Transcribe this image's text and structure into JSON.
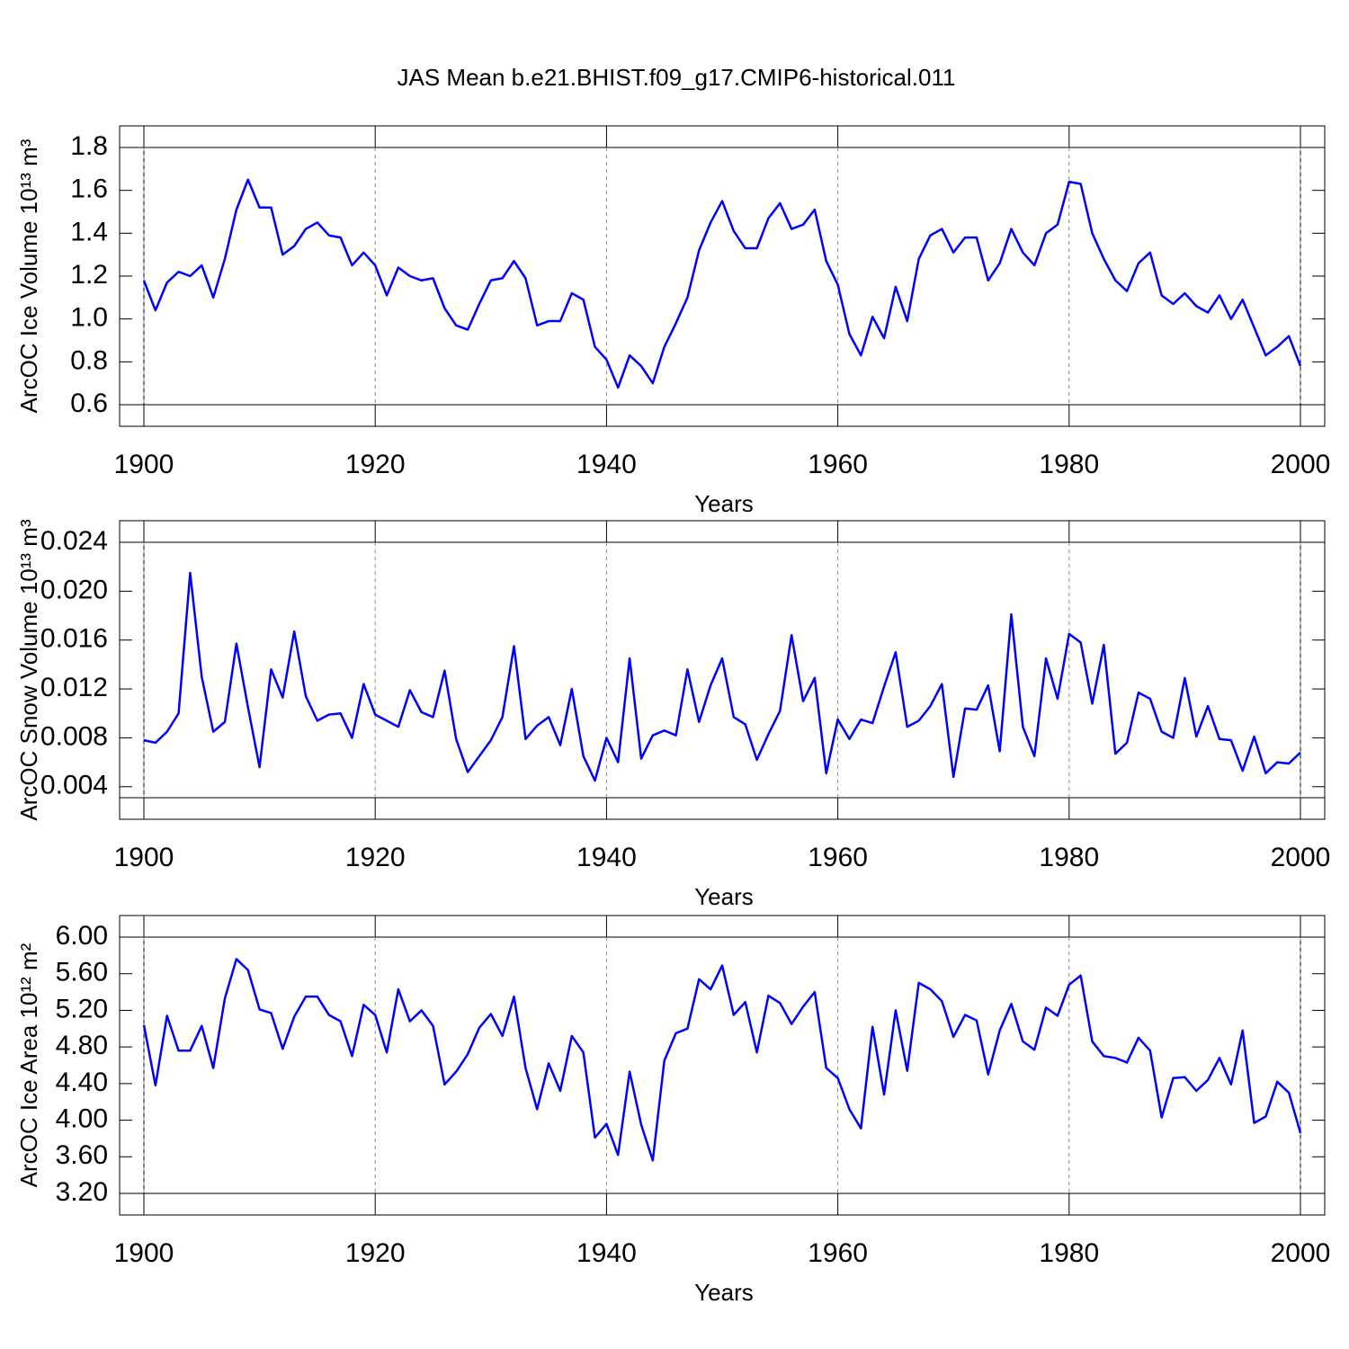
{
  "chart_data": [
    {
      "type": "line",
      "title": "JAS Mean b.e21.BHIST.f09_g17.CMIP6-historical.011",
      "xlabel": "Years",
      "ylabel": "ArcOC Ice Volume 10¹³ m³",
      "color": "#0000ff",
      "xgrid": true,
      "x": [
        1900,
        1901,
        1902,
        1903,
        1904,
        1905,
        1906,
        1907,
        1908,
        1909,
        1910,
        1911,
        1912,
        1913,
        1914,
        1915,
        1916,
        1917,
        1918,
        1919,
        1920,
        1921,
        1922,
        1923,
        1924,
        1925,
        1926,
        1927,
        1928,
        1929,
        1930,
        1931,
        1932,
        1933,
        1934,
        1935,
        1936,
        1937,
        1938,
        1939,
        1940,
        1941,
        1942,
        1943,
        1944,
        1945,
        1946,
        1947,
        1948,
        1949,
        1950,
        1951,
        1952,
        1953,
        1954,
        1955,
        1956,
        1957,
        1958,
        1959,
        1960,
        1961,
        1962,
        1963,
        1964,
        1965,
        1966,
        1967,
        1968,
        1969,
        1970,
        1971,
        1972,
        1973,
        1974,
        1975,
        1976,
        1977,
        1978,
        1979,
        1980,
        1981,
        1982,
        1983,
        1984,
        1985,
        1986,
        1987,
        1988,
        1989,
        1990,
        1991,
        1992,
        1993,
        1994,
        1995,
        1996,
        1997,
        1998,
        1999,
        2000
      ],
      "values": [
        1.18,
        1.04,
        1.17,
        1.22,
        1.2,
        1.25,
        1.1,
        1.28,
        1.51,
        1.65,
        1.52,
        1.52,
        1.3,
        1.34,
        1.42,
        1.45,
        1.39,
        1.38,
        1.25,
        1.31,
        1.25,
        1.11,
        1.24,
        1.2,
        1.18,
        1.19,
        1.05,
        0.97,
        0.95,
        1.07,
        1.18,
        1.19,
        1.27,
        1.19,
        0.97,
        0.99,
        0.99,
        1.12,
        1.09,
        0.87,
        0.81,
        0.68,
        0.83,
        0.78,
        0.7,
        0.87,
        0.98,
        1.1,
        1.32,
        1.45,
        1.55,
        1.41,
        1.33,
        1.33,
        1.47,
        1.54,
        1.42,
        1.44,
        1.51,
        1.27,
        1.16,
        0.93,
        0.83,
        1.01,
        0.91,
        1.15,
        0.99,
        1.28,
        1.39,
        1.42,
        1.31,
        1.38,
        1.38,
        1.18,
        1.26,
        1.42,
        1.31,
        1.25,
        1.4,
        1.44,
        1.64,
        1.63,
        1.4,
        1.28,
        1.18,
        1.13,
        1.26,
        1.31,
        1.11,
        1.07,
        1.12,
        1.06,
        1.03,
        1.11,
        1.0,
        1.09,
        0.96,
        0.83,
        0.87,
        0.92,
        0.78
      ],
      "xlim": [
        1900,
        2000
      ],
      "ylim": [
        0.6,
        1.8
      ],
      "xticks": [
        1900,
        1920,
        1940,
        1960,
        1980,
        2000
      ],
      "yticks": [
        0.6,
        0.8,
        {
          "value": 1,
          "label": "1.0"
        },
        1.2,
        1.4,
        1.6,
        1.8
      ]
    },
    {
      "type": "line",
      "xlabel": "Years",
      "ylabel": "ArcOC Snow Volume 10¹³ m³",
      "color": "#0000ff",
      "xgrid": true,
      "x": [
        1900,
        1901,
        1902,
        1903,
        1904,
        1905,
        1906,
        1907,
        1908,
        1909,
        1910,
        1911,
        1912,
        1913,
        1914,
        1915,
        1916,
        1917,
        1918,
        1919,
        1920,
        1921,
        1922,
        1923,
        1924,
        1925,
        1926,
        1927,
        1928,
        1929,
        1930,
        1931,
        1932,
        1933,
        1934,
        1935,
        1936,
        1937,
        1938,
        1939,
        1940,
        1941,
        1942,
        1943,
        1944,
        1945,
        1946,
        1947,
        1948,
        1949,
        1950,
        1951,
        1952,
        1953,
        1954,
        1955,
        1956,
        1957,
        1958,
        1959,
        1960,
        1961,
        1962,
        1963,
        1964,
        1965,
        1966,
        1967,
        1968,
        1969,
        1970,
        1971,
        1972,
        1973,
        1974,
        1975,
        1976,
        1977,
        1978,
        1979,
        1980,
        1981,
        1982,
        1983,
        1984,
        1985,
        1986,
        1987,
        1988,
        1989,
        1990,
        1991,
        1992,
        1993,
        1994,
        1995,
        1996,
        1997,
        1998,
        1999,
        2000
      ],
      "values": [
        0.0078,
        0.0076,
        0.0085,
        0.01,
        0.0215,
        0.013,
        0.0085,
        0.0093,
        0.0157,
        0.0105,
        0.0056,
        0.0136,
        0.0113,
        0.0167,
        0.0114,
        0.0094,
        0.0099,
        0.01,
        0.008,
        0.0124,
        0.0099,
        0.0094,
        0.0089,
        0.0119,
        0.0101,
        0.0097,
        0.0135,
        0.0079,
        0.0052,
        0.0065,
        0.0078,
        0.0097,
        0.0155,
        0.0079,
        0.009,
        0.0097,
        0.0074,
        0.012,
        0.0065,
        0.0045,
        0.008,
        0.006,
        0.0145,
        0.0063,
        0.0082,
        0.0086,
        0.0082,
        0.0136,
        0.0093,
        0.0123,
        0.0145,
        0.0097,
        0.0091,
        0.0062,
        0.0083,
        0.0102,
        0.0164,
        0.011,
        0.0129,
        0.0051,
        0.0095,
        0.0079,
        0.0095,
        0.0092,
        0.0122,
        0.015,
        0.0089,
        0.0094,
        0.0106,
        0.0124,
        0.0048,
        0.0104,
        0.0103,
        0.0123,
        0.0069,
        0.0181,
        0.0089,
        0.0065,
        0.0145,
        0.0112,
        0.0165,
        0.0158,
        0.0108,
        0.0156,
        0.0067,
        0.0076,
        0.0117,
        0.0112,
        0.0085,
        0.008,
        0.0129,
        0.0081,
        0.0106,
        0.0079,
        0.0078,
        0.0053,
        0.0081,
        0.0051,
        0.006,
        0.0059,
        0.0068
      ],
      "xlim": [
        1900,
        2000
      ],
      "ylim": [
        0.0031,
        0.024
      ],
      "xticks": [
        1900,
        1920,
        1940,
        1960,
        1980,
        2000
      ],
      "yticks": [
        0.004,
        0.008,
        0.012,
        0.016,
        {
          "value": 0.02,
          "label": "0.020"
        },
        0.024
      ]
    },
    {
      "type": "line",
      "xlabel": "Years",
      "ylabel": "ArcOC Ice Area 10¹² m²",
      "color": "#0000ff",
      "xgrid": true,
      "x": [
        1900,
        1901,
        1902,
        1903,
        1904,
        1905,
        1906,
        1907,
        1908,
        1909,
        1910,
        1911,
        1912,
        1913,
        1914,
        1915,
        1916,
        1917,
        1918,
        1919,
        1920,
        1921,
        1922,
        1923,
        1924,
        1925,
        1926,
        1927,
        1928,
        1929,
        1930,
        1931,
        1932,
        1933,
        1934,
        1935,
        1936,
        1937,
        1938,
        1939,
        1940,
        1941,
        1942,
        1943,
        1944,
        1945,
        1946,
        1947,
        1948,
        1949,
        1950,
        1951,
        1952,
        1953,
        1954,
        1955,
        1956,
        1957,
        1958,
        1959,
        1960,
        1961,
        1962,
        1963,
        1964,
        1965,
        1966,
        1967,
        1968,
        1969,
        1970,
        1971,
        1972,
        1973,
        1974,
        1975,
        1976,
        1977,
        1978,
        1979,
        1980,
        1981,
        1982,
        1983,
        1984,
        1985,
        1986,
        1987,
        1988,
        1989,
        1990,
        1991,
        1992,
        1993,
        1994,
        1995,
        1996,
        1997,
        1998,
        1999,
        2000
      ],
      "values": [
        5.04,
        4.38,
        5.14,
        4.76,
        4.76,
        5.03,
        4.57,
        5.33,
        5.76,
        5.64,
        5.21,
        5.17,
        4.78,
        5.13,
        5.35,
        5.35,
        5.15,
        5.08,
        4.7,
        5.26,
        5.15,
        4.74,
        5.43,
        5.08,
        5.2,
        5.03,
        4.39,
        4.53,
        4.72,
        5.01,
        5.16,
        4.92,
        5.35,
        4.57,
        4.12,
        4.62,
        4.32,
        4.92,
        4.74,
        3.81,
        3.96,
        3.62,
        4.53,
        3.95,
        3.56,
        4.65,
        4.95,
        5.0,
        5.54,
        5.43,
        5.69,
        5.15,
        5.29,
        4.74,
        5.36,
        5.28,
        5.05,
        5.24,
        5.4,
        4.57,
        4.46,
        4.12,
        3.91,
        5.02,
        4.28,
        5.2,
        4.54,
        5.5,
        5.43,
        5.3,
        4.91,
        5.15,
        5.09,
        4.5,
        4.98,
        5.27,
        4.86,
        4.77,
        5.23,
        5.14,
        5.48,
        5.58,
        4.86,
        4.7,
        4.68,
        4.63,
        4.9,
        4.76,
        4.03,
        4.46,
        4.47,
        4.32,
        4.44,
        4.68,
        4.39,
        4.98,
        3.97,
        4.04,
        4.42,
        4.3,
        3.86
      ],
      "xlim": [
        1900,
        2000
      ],
      "ylim": [
        3.2,
        6.0
      ],
      "xticks": [
        1900,
        1920,
        1940,
        1960,
        1980,
        2000
      ],
      "yticks": [
        {
          "value": 3.2,
          "label": "3.20"
        },
        {
          "value": 3.6,
          "label": "3.60"
        },
        {
          "value": 4,
          "label": "4.00"
        },
        {
          "value": 4.4,
          "label": "4.40"
        },
        {
          "value": 4.8,
          "label": "4.80"
        },
        {
          "value": 5.2,
          "label": "5.20"
        },
        {
          "value": 5.6,
          "label": "5.60"
        },
        {
          "value": 6,
          "label": "6.00"
        }
      ]
    }
  ]
}
